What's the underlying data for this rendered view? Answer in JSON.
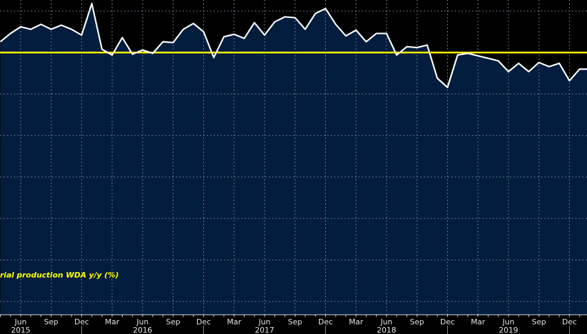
{
  "chart_data": {
    "type": "area",
    "title": "",
    "legend": "rial production WDA y/y (%)",
    "legend_placement": "bottom-left",
    "xlabel": "",
    "ylabel": "",
    "grid": true,
    "colors": {
      "background": "#000000",
      "fill": "#021d3d",
      "line": "#ffffff",
      "zero_line": "#ffff00",
      "legend_text": "#ffff00"
    },
    "ylim": [
      -31.6,
      6.33
    ],
    "y_gridlines": [
      5,
      -5,
      -10,
      -15,
      -20,
      -25,
      -30
    ],
    "reference_line": 0,
    "x": [
      "2015-04",
      "2015-05",
      "2015-06",
      "2015-07",
      "2015-08",
      "2015-09",
      "2015-10",
      "2015-11",
      "2015-12",
      "2016-01",
      "2016-02",
      "2016-03",
      "2016-04",
      "2016-05",
      "2016-06",
      "2016-07",
      "2016-08",
      "2016-09",
      "2016-10",
      "2016-11",
      "2016-12",
      "2017-01",
      "2017-02",
      "2017-03",
      "2017-04",
      "2017-05",
      "2017-06",
      "2017-07",
      "2017-08",
      "2017-09",
      "2017-10",
      "2017-11",
      "2017-12",
      "2018-01",
      "2018-02",
      "2018-03",
      "2018-04",
      "2018-05",
      "2018-06",
      "2018-07",
      "2018-08",
      "2018-09",
      "2018-10",
      "2018-11",
      "2018-12",
      "2019-01",
      "2019-02",
      "2019-03",
      "2019-04",
      "2019-05",
      "2019-06",
      "2019-07",
      "2019-08",
      "2019-09",
      "2019-10",
      "2019-11",
      "2019-12",
      "2020-01",
      "2020-02"
    ],
    "values": [
      1.3,
      2.3,
      3.1,
      2.8,
      3.4,
      2.8,
      3.3,
      2.8,
      2.1,
      5.9,
      0.4,
      -0.3,
      1.8,
      -0.2,
      0.3,
      -0.1,
      1.3,
      1.2,
      2.8,
      3.5,
      2.5,
      -0.6,
      1.9,
      2.2,
      1.7,
      3.6,
      2.1,
      3.7,
      4.3,
      4.2,
      2.8,
      4.7,
      5.3,
      3.4,
      2.0,
      2.7,
      1.3,
      2.3,
      2.3,
      -0.3,
      0.7,
      0.6,
      0.9,
      -3.1,
      -4.2,
      -0.3,
      -0.1,
      -0.4,
      -0.7,
      -1.0,
      -2.3,
      -1.3,
      -2.3,
      -1.2,
      -1.7,
      -1.3,
      -3.4,
      -2.0,
      -2.0
    ],
    "x_ticks": [
      {
        "date": "2015-06",
        "label": "Jun"
      },
      {
        "date": "2015-09",
        "label": "Sep"
      },
      {
        "date": "2015-12",
        "label": "Dec"
      },
      {
        "date": "2016-03",
        "label": "Mar"
      },
      {
        "date": "2016-06",
        "label": "Jun"
      },
      {
        "date": "2016-09",
        "label": "Sep"
      },
      {
        "date": "2016-12",
        "label": "Dec"
      },
      {
        "date": "2017-03",
        "label": "Mar"
      },
      {
        "date": "2017-06",
        "label": "Jun"
      },
      {
        "date": "2017-09",
        "label": "Sep"
      },
      {
        "date": "2017-12",
        "label": "Dec"
      },
      {
        "date": "2018-03",
        "label": "Mar"
      },
      {
        "date": "2018-06",
        "label": "Jun"
      },
      {
        "date": "2018-09",
        "label": "Sep"
      },
      {
        "date": "2018-12",
        "label": "Dec"
      },
      {
        "date": "2019-03",
        "label": "Mar"
      },
      {
        "date": "2019-06",
        "label": "Jun"
      },
      {
        "date": "2019-09",
        "label": "Sep"
      },
      {
        "date": "2019-12",
        "label": "Dec"
      }
    ],
    "year_labels": [
      {
        "date": "2015-06",
        "label": "2015"
      },
      {
        "date": "2016-06",
        "label": "2016"
      },
      {
        "date": "2017-06",
        "label": "2017"
      },
      {
        "date": "2018-06",
        "label": "2018"
      },
      {
        "date": "2019-06",
        "label": "2019"
      }
    ]
  }
}
